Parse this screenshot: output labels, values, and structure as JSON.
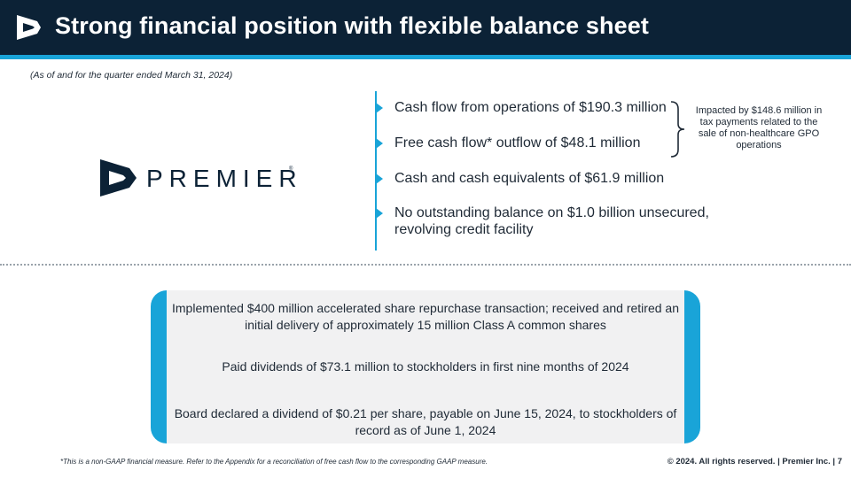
{
  "header": {
    "title": "Strong financial position with flexible balance sheet",
    "logo_icon": "premier-logo-icon"
  },
  "subtitle": "(As of and for the quarter ended March 31, 2024)",
  "brand": {
    "wordmark": "PREMIER",
    "registered": "®"
  },
  "bullets": [
    "Cash flow from operations of $190.3 million",
    "Free cash flow* outflow of $48.1 million",
    "Cash and cash equivalents of $61.9 million",
    "No outstanding balance on $1.0 billion unsecured, revolving credit facility"
  ],
  "side_note": "Impacted by $148.6 million in tax payments related to the sale of non-healthcare GPO operations",
  "capital_actions": [
    "Implemented $400 million accelerated share repurchase transaction; received and retired an initial delivery of approximately 15 million Class A common shares",
    "Paid dividends of $73.1 million to stockholders in first nine months of 2024",
    "Board declared a dividend of $0.21 per share, payable on June 15, 2024, to stockholders of record as of June 1, 2024"
  ],
  "footer": {
    "footnote": "*This is a non-GAAP financial measure. Refer to the Appendix for a reconciliation of free cash flow to the corresponding GAAP measure.",
    "copyright": "© 2024. All rights reserved.  |  Premier Inc.  |  7"
  },
  "colors": {
    "navy": "#0c2236",
    "accent_blue": "#19a4d8",
    "panel_grey": "#f1f1f2"
  }
}
